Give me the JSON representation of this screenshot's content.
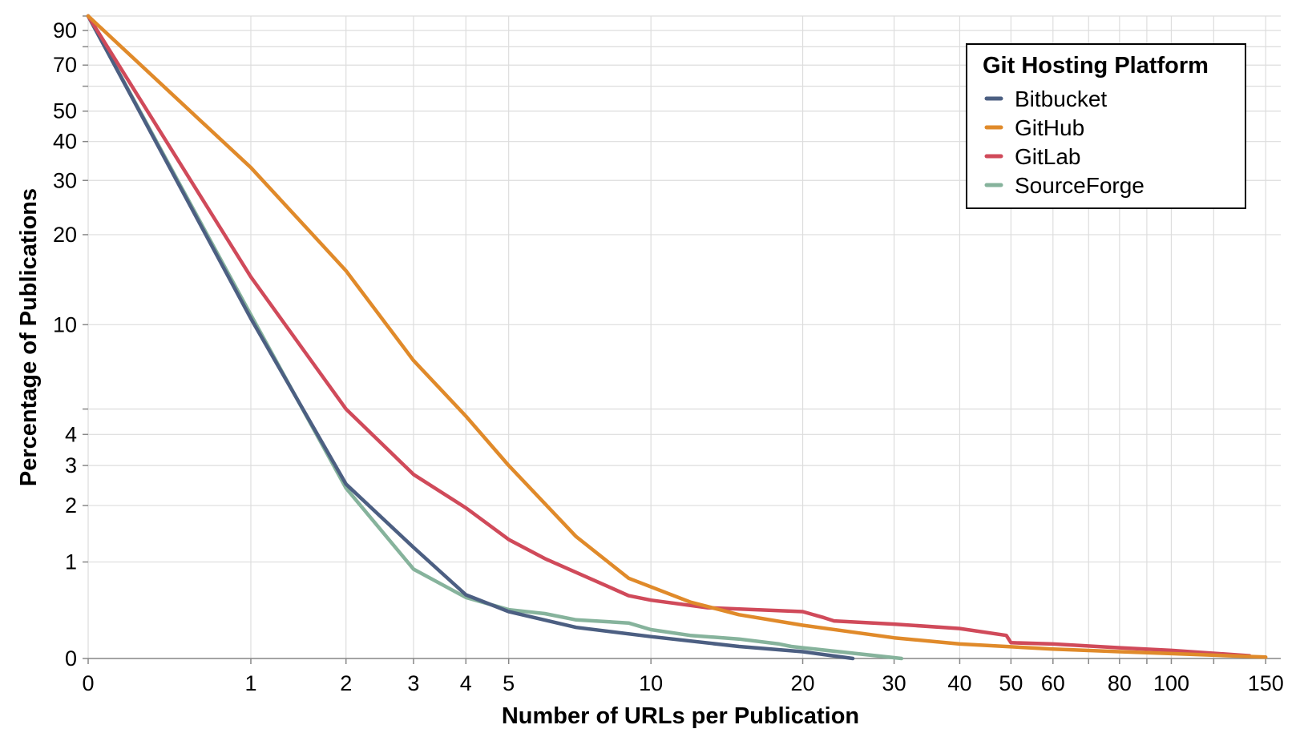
{
  "chart_data": {
    "type": "line",
    "xlabel": "Number of URLs per Publication",
    "ylabel": "Percentage of Publications",
    "x_scale": "symlog",
    "y_scale": "symlog",
    "xlim": [
      0,
      160
    ],
    "ylim": [
      0,
      100
    ],
    "x_ticks": [
      0,
      1,
      2,
      3,
      4,
      5,
      10,
      20,
      30,
      40,
      50,
      60,
      80,
      100,
      150
    ],
    "y_ticks": [
      0,
      1,
      2,
      3,
      4,
      10,
      20,
      30,
      40,
      50,
      70,
      90
    ],
    "grid": true,
    "legend": {
      "title": "Git Hosting Platform",
      "position": "top-right"
    },
    "series": [
      {
        "name": "Bitbucket",
        "color": "#4c5f82",
        "x": [
          0,
          1,
          2,
          3,
          4,
          5,
          7,
          10,
          15,
          20,
          25
        ],
        "y": [
          100,
          10.5,
          2.5,
          1.22,
          0.58,
          0.4,
          0.25,
          0.17,
          0.09,
          0.05,
          0.0
        ]
      },
      {
        "name": "GitHub",
        "color": "#e08a2a",
        "x": [
          0,
          1,
          2,
          3,
          4,
          5,
          7,
          9,
          12,
          15,
          20,
          30,
          40,
          60,
          80,
          150
        ],
        "y": [
          100,
          33,
          15.2,
          7.5,
          4.7,
          3.0,
          1.4,
          0.78,
          0.5,
          0.37,
          0.27,
          0.16,
          0.11,
          0.07,
          0.05,
          0.01
        ]
      },
      {
        "name": "GitLab",
        "color": "#d04a5a",
        "x": [
          0,
          1,
          2,
          3,
          4,
          5,
          6,
          8,
          9,
          10,
          13,
          20,
          22,
          23,
          30,
          40,
          49,
          50,
          60,
          80,
          100,
          140
        ],
        "y": [
          100,
          14.5,
          5.0,
          2.75,
          1.95,
          1.35,
          1.05,
          0.7,
          0.57,
          0.52,
          0.44,
          0.4,
          0.34,
          0.31,
          0.28,
          0.24,
          0.18,
          0.12,
          0.11,
          0.08,
          0.06,
          0.02
        ]
      },
      {
        "name": "SourceForge",
        "color": "#86b39c",
        "x": [
          0,
          1,
          2,
          3,
          4,
          5,
          6,
          7,
          9,
          10,
          12,
          15,
          18,
          19,
          20,
          31
        ],
        "y": [
          100,
          10.8,
          2.4,
          0.9,
          0.55,
          0.42,
          0.38,
          0.32,
          0.29,
          0.23,
          0.18,
          0.15,
          0.11,
          0.09,
          0.08,
          0.0
        ]
      }
    ]
  }
}
